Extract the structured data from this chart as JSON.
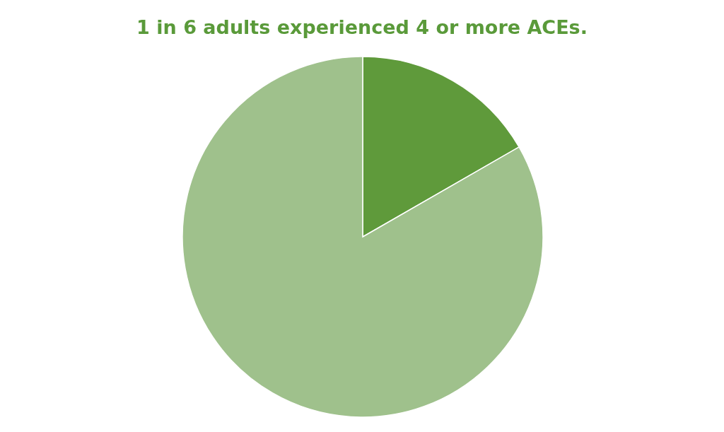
{
  "chart_data": {
    "type": "pie",
    "title": "1 in 6 adults experienced 4 or more ACEs.",
    "categories": [
      null,
      null
    ],
    "values": [
      16.7,
      83.3
    ],
    "colors": [
      "#5f9a3b",
      "#9fc18c"
    ]
  }
}
